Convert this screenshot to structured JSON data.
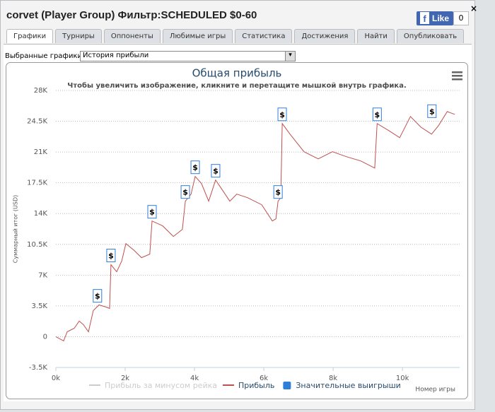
{
  "header": {
    "title": "corvet (Player Group) Фильтр:SCHEDULED $0-60",
    "like": "Like",
    "like_count": "0",
    "close": "×"
  },
  "tabs": [
    "Графики",
    "Турниры",
    "Оппоненты",
    "Любимые игры",
    "Статистика",
    "Достижения",
    "Найти",
    "Опубликовать"
  ],
  "selector": {
    "label": "Выбранные графики:",
    "value": "История прибыли"
  },
  "chart_data": {
    "type": "line",
    "title": "Общая прибыль",
    "subtitle": "Чтобы увеличить изображение, кликните и перетащите мышкой внутрь графика.",
    "x_label": "Номер игры",
    "y_label": "Суммарный итог (USD)",
    "x": [
      0,
      224,
      327,
      530,
      673,
      796,
      940,
      1080,
      1245,
      1450,
      1550,
      1590,
      1755,
      1900,
      2020,
      2265,
      2470,
      2710,
      2775,
      3080,
      3390,
      3650,
      3735,
      3900,
      4020,
      4200,
      4410,
      4610,
      4815,
      5020,
      5220,
      5530,
      5940,
      6245,
      6350,
      6410,
      6490,
      6530,
      6755,
      7160,
      7570,
      7980,
      8390,
      8800,
      9200,
      9270,
      9610,
      9920,
      10230,
      10530,
      10840,
      11040,
      11290,
      11510
    ],
    "series": [
      {
        "name": "Прибыль за минусом рейка",
        "color": "#cccccc",
        "values": [
          null,
          null,
          null,
          null,
          null,
          null,
          null,
          null,
          null,
          null,
          null,
          null,
          null,
          null,
          null,
          null,
          null,
          null,
          null,
          null,
          null,
          null,
          null,
          null,
          null,
          null,
          null,
          null,
          null,
          null,
          null,
          null,
          null,
          null,
          null,
          null,
          null,
          null,
          null,
          null,
          null,
          null,
          null,
          null,
          null,
          null,
          null,
          null,
          null,
          null,
          null,
          null,
          null,
          null
        ]
      },
      {
        "name": "Прибыль",
        "color": "#c0504d",
        "values": [
          0,
          -480,
          560,
          960,
          1770,
          1360,
          560,
          2970,
          3610,
          3370,
          3210,
          8190,
          7380,
          8590,
          10590,
          9790,
          8990,
          9390,
          13160,
          12600,
          11400,
          12200,
          15410,
          16210,
          18220,
          17420,
          15410,
          17820,
          16610,
          15410,
          16210,
          15810,
          15010,
          13160,
          13400,
          15410,
          15810,
          24240,
          23030,
          21030,
          20220,
          21030,
          20460,
          19980,
          19180,
          24240,
          23430,
          22630,
          25040,
          23830,
          23030,
          24000,
          25600,
          25280
        ]
      },
      {
        "name": "Значительные выигрыши",
        "color": "#2f7ed8",
        "marker": "$",
        "x": [
          1200,
          1590,
          2775,
          3735,
          4020,
          4610,
          6410,
          6530,
          9270,
          10850
        ],
        "values": [
          3600,
          8190,
          13160,
          15410,
          18220,
          17820,
          15410,
          24240,
          24240,
          24600
        ]
      }
    ],
    "xlim": [
      0,
      11650
    ],
    "ylim": [
      -3500,
      28000
    ],
    "xticks": [
      {
        "value": 0,
        "label": "0k"
      },
      {
        "value": 2000,
        "label": "2k"
      },
      {
        "value": 4000,
        "label": "4k"
      },
      {
        "value": 6000,
        "label": "6k"
      },
      {
        "value": 8000,
        "label": "8k"
      },
      {
        "value": 10000,
        "label": "10k"
      }
    ],
    "yticks": [
      {
        "value": -3500,
        "label": "-3.5K"
      },
      {
        "value": 0,
        "label": "0"
      },
      {
        "value": 3500,
        "label": "3.5K"
      },
      {
        "value": 7000,
        "label": "7K"
      },
      {
        "value": 10500,
        "label": "10.5K"
      },
      {
        "value": 14000,
        "label": "14K"
      },
      {
        "value": 17500,
        "label": "17.5K"
      },
      {
        "value": 21000,
        "label": "21K"
      },
      {
        "value": 24500,
        "label": "24.5K"
      },
      {
        "value": 28000,
        "label": "28K"
      }
    ],
    "grid": true
  }
}
